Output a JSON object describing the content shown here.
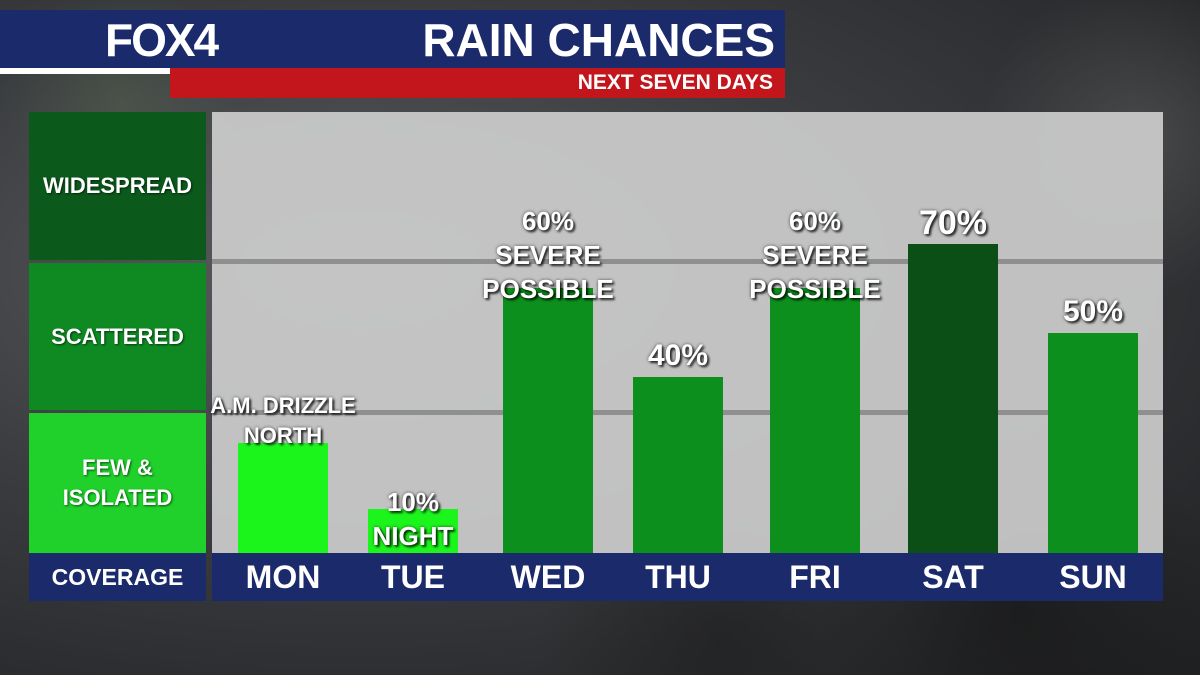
{
  "header": {
    "logo": "FOX4",
    "title": "RAIN CHANCES",
    "subtitle": "NEXT SEVEN DAYS"
  },
  "y_axis": {
    "title": "COVERAGE",
    "levels": [
      "FEW & ISOLATED",
      "SCATTERED",
      "WIDESPREAD"
    ],
    "level_lines": [
      [
        "FEW &",
        "ISOLATED"
      ],
      [
        "SCATTERED"
      ],
      [
        "WIDESPREAD"
      ]
    ],
    "level_colors": [
      "#1fd12a",
      "#0f8a22",
      "#0b5a1c"
    ]
  },
  "chart_data": {
    "type": "bar",
    "title": "RAIN CHANCES",
    "subtitle": "NEXT SEVEN DAYS",
    "categories": [
      "MON",
      "TUE",
      "WED",
      "THU",
      "FRI",
      "SAT",
      "SUN"
    ],
    "values": [
      25,
      10,
      60,
      40,
      60,
      70,
      50
    ],
    "ylim": [
      0,
      100
    ],
    "ylabel": "COVERAGE",
    "bar_colors": [
      "#1cf51c",
      "#1cf51c",
      "#0d8f1d",
      "#0d8f1d",
      "#0d8f1d",
      "#0b4f16",
      "#0d8f1d"
    ],
    "labels": [
      [
        "A.M. DRIZZLE",
        "NORTH"
      ],
      [
        "10%",
        "NIGHT"
      ],
      [
        "60%",
        "SEVERE",
        "POSSIBLE"
      ],
      [
        "40%"
      ],
      [
        "60%",
        "SEVERE",
        "POSSIBLE"
      ],
      [
        "70%"
      ],
      [
        "50%"
      ]
    ],
    "grid": true,
    "legend": "none"
  }
}
